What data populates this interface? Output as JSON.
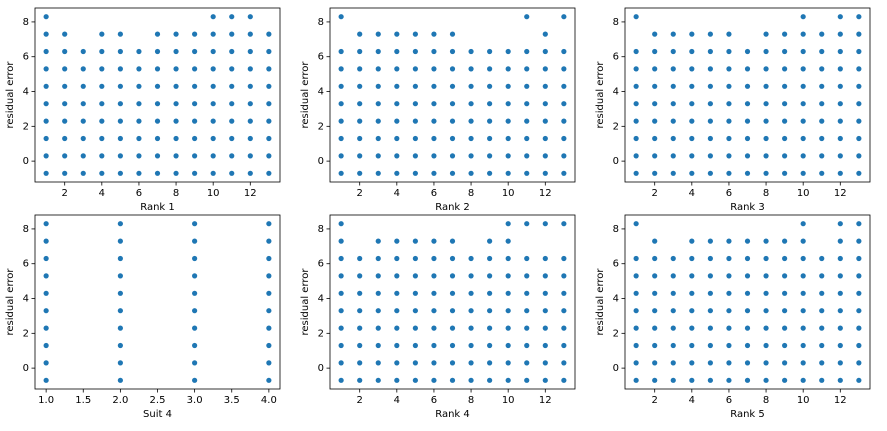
{
  "chart_data": [
    {
      "type": "scatter",
      "xlabel": "Rank 1",
      "ylabel": "residual error",
      "color": "#1f77b4",
      "xlim": [
        0.4,
        13.6
      ],
      "xticks": [
        2,
        4,
        6,
        8,
        10,
        12
      ],
      "ylim": [
        -1.2,
        8.8
      ],
      "yticks": [
        0,
        2,
        4,
        6,
        8
      ],
      "x": [
        1,
        2,
        3,
        4,
        5,
        6,
        7,
        8,
        9,
        10,
        11,
        12,
        13,
        1,
        2,
        3,
        4,
        5,
        6,
        7,
        8,
        9,
        10,
        11,
        12,
        13,
        1,
        2,
        3,
        4,
        5,
        6,
        7,
        8,
        9,
        10,
        11,
        12,
        13,
        1,
        2,
        3,
        4,
        5,
        6,
        7,
        8,
        9,
        10,
        11,
        12,
        13,
        1,
        2,
        3,
        4,
        5,
        6,
        7,
        8,
        9,
        10,
        11,
        12,
        13,
        1,
        2,
        3,
        4,
        5,
        6,
        7,
        8,
        9,
        10,
        11,
        12,
        13,
        1,
        2,
        3,
        4,
        5,
        6,
        7,
        8,
        9,
        10,
        11,
        12,
        13,
        1,
        2,
        3,
        4,
        5,
        6,
        7,
        8,
        9,
        10,
        11,
        12,
        13,
        1,
        2,
        4,
        5,
        7,
        8,
        9,
        10,
        11,
        12,
        13,
        1,
        10,
        11,
        12
      ],
      "y": [
        -0.7,
        -0.7,
        -0.7,
        -0.7,
        -0.7,
        -0.7,
        -0.7,
        -0.7,
        -0.7,
        -0.7,
        -0.7,
        -0.7,
        -0.7,
        0.3,
        0.3,
        0.3,
        0.3,
        0.3,
        0.3,
        0.3,
        0.3,
        0.3,
        0.3,
        0.3,
        0.3,
        0.3,
        1.3,
        1.3,
        1.3,
        1.3,
        1.3,
        1.3,
        1.3,
        1.3,
        1.3,
        1.3,
        1.3,
        1.3,
        1.3,
        2.3,
        2.3,
        2.3,
        2.3,
        2.3,
        2.3,
        2.3,
        2.3,
        2.3,
        2.3,
        2.3,
        2.3,
        2.3,
        3.3,
        3.3,
        3.3,
        3.3,
        3.3,
        3.3,
        3.3,
        3.3,
        3.3,
        3.3,
        3.3,
        3.3,
        3.3,
        4.3,
        4.3,
        4.3,
        4.3,
        4.3,
        4.3,
        4.3,
        4.3,
        4.3,
        4.3,
        4.3,
        4.3,
        4.3,
        5.3,
        5.3,
        5.3,
        5.3,
        5.3,
        5.3,
        5.3,
        5.3,
        5.3,
        5.3,
        5.3,
        5.3,
        5.3,
        6.3,
        6.3,
        6.3,
        6.3,
        6.3,
        6.3,
        6.3,
        6.3,
        6.3,
        6.3,
        6.3,
        6.3,
        6.3,
        7.3,
        7.3,
        7.3,
        7.3,
        7.3,
        7.3,
        7.3,
        7.3,
        7.3,
        7.3,
        7.3,
        8.3,
        8.3,
        8.3,
        8.3
      ]
    },
    {
      "type": "scatter",
      "xlabel": "Rank 2",
      "ylabel": "residual error",
      "color": "#1f77b4",
      "xlim": [
        0.4,
        13.6
      ],
      "xticks": [
        2,
        4,
        6,
        8,
        10,
        12
      ],
      "ylim": [
        -1.2,
        8.8
      ],
      "yticks": [
        0,
        2,
        4,
        6,
        8
      ],
      "x": [
        1,
        2,
        3,
        4,
        5,
        6,
        7,
        8,
        9,
        10,
        11,
        12,
        13,
        1,
        2,
        3,
        4,
        5,
        6,
        7,
        8,
        9,
        10,
        11,
        12,
        13,
        1,
        2,
        3,
        4,
        5,
        6,
        7,
        8,
        9,
        10,
        11,
        12,
        13,
        1,
        2,
        3,
        4,
        5,
        6,
        7,
        8,
        9,
        10,
        11,
        12,
        13,
        1,
        2,
        3,
        4,
        5,
        6,
        7,
        8,
        9,
        10,
        11,
        12,
        13,
        1,
        2,
        3,
        4,
        5,
        6,
        7,
        8,
        9,
        10,
        11,
        12,
        13,
        1,
        2,
        3,
        4,
        5,
        6,
        7,
        8,
        9,
        10,
        11,
        12,
        13,
        1,
        2,
        3,
        4,
        5,
        6,
        7,
        8,
        9,
        10,
        11,
        12,
        13,
        2,
        3,
        4,
        5,
        6,
        7,
        12,
        1,
        11,
        13
      ],
      "y": [
        -0.7,
        -0.7,
        -0.7,
        -0.7,
        -0.7,
        -0.7,
        -0.7,
        -0.7,
        -0.7,
        -0.7,
        -0.7,
        -0.7,
        -0.7,
        0.3,
        0.3,
        0.3,
        0.3,
        0.3,
        0.3,
        0.3,
        0.3,
        0.3,
        0.3,
        0.3,
        0.3,
        0.3,
        1.3,
        1.3,
        1.3,
        1.3,
        1.3,
        1.3,
        1.3,
        1.3,
        1.3,
        1.3,
        1.3,
        1.3,
        1.3,
        2.3,
        2.3,
        2.3,
        2.3,
        2.3,
        2.3,
        2.3,
        2.3,
        2.3,
        2.3,
        2.3,
        2.3,
        2.3,
        3.3,
        3.3,
        3.3,
        3.3,
        3.3,
        3.3,
        3.3,
        3.3,
        3.3,
        3.3,
        3.3,
        3.3,
        3.3,
        4.3,
        4.3,
        4.3,
        4.3,
        4.3,
        4.3,
        4.3,
        4.3,
        4.3,
        4.3,
        4.3,
        4.3,
        4.3,
        5.3,
        5.3,
        5.3,
        5.3,
        5.3,
        5.3,
        5.3,
        5.3,
        5.3,
        5.3,
        5.3,
        5.3,
        5.3,
        6.3,
        6.3,
        6.3,
        6.3,
        6.3,
        6.3,
        6.3,
        6.3,
        6.3,
        6.3,
        6.3,
        6.3,
        6.3,
        7.3,
        7.3,
        7.3,
        7.3,
        7.3,
        7.3,
        7.3,
        8.3,
        8.3,
        8.3
      ]
    },
    {
      "type": "scatter",
      "xlabel": "Rank 3",
      "ylabel": "residual error",
      "color": "#1f77b4",
      "xlim": [
        0.4,
        13.6
      ],
      "xticks": [
        2,
        4,
        6,
        8,
        10,
        12
      ],
      "ylim": [
        -1.2,
        8.8
      ],
      "yticks": [
        0,
        2,
        4,
        6,
        8
      ],
      "x": [
        1,
        2,
        3,
        4,
        5,
        6,
        7,
        8,
        9,
        10,
        11,
        12,
        13,
        1,
        2,
        3,
        4,
        5,
        6,
        7,
        8,
        9,
        10,
        11,
        12,
        13,
        1,
        2,
        3,
        4,
        5,
        6,
        7,
        8,
        9,
        10,
        11,
        12,
        13,
        1,
        2,
        3,
        4,
        5,
        6,
        7,
        8,
        9,
        10,
        11,
        12,
        13,
        1,
        2,
        3,
        4,
        5,
        6,
        7,
        8,
        9,
        10,
        11,
        12,
        13,
        1,
        2,
        3,
        4,
        5,
        6,
        7,
        8,
        9,
        10,
        11,
        12,
        13,
        1,
        2,
        3,
        4,
        5,
        6,
        7,
        8,
        9,
        10,
        11,
        12,
        13,
        1,
        2,
        3,
        4,
        5,
        6,
        7,
        8,
        9,
        10,
        11,
        12,
        13,
        2,
        3,
        4,
        5,
        6,
        8,
        9,
        10,
        11,
        12,
        13,
        1,
        10,
        12,
        13
      ],
      "y": [
        -0.7,
        -0.7,
        -0.7,
        -0.7,
        -0.7,
        -0.7,
        -0.7,
        -0.7,
        -0.7,
        -0.7,
        -0.7,
        -0.7,
        -0.7,
        0.3,
        0.3,
        0.3,
        0.3,
        0.3,
        0.3,
        0.3,
        0.3,
        0.3,
        0.3,
        0.3,
        0.3,
        0.3,
        1.3,
        1.3,
        1.3,
        1.3,
        1.3,
        1.3,
        1.3,
        1.3,
        1.3,
        1.3,
        1.3,
        1.3,
        1.3,
        2.3,
        2.3,
        2.3,
        2.3,
        2.3,
        2.3,
        2.3,
        2.3,
        2.3,
        2.3,
        2.3,
        2.3,
        2.3,
        3.3,
        3.3,
        3.3,
        3.3,
        3.3,
        3.3,
        3.3,
        3.3,
        3.3,
        3.3,
        3.3,
        3.3,
        3.3,
        4.3,
        4.3,
        4.3,
        4.3,
        4.3,
        4.3,
        4.3,
        4.3,
        4.3,
        4.3,
        4.3,
        4.3,
        4.3,
        5.3,
        5.3,
        5.3,
        5.3,
        5.3,
        5.3,
        5.3,
        5.3,
        5.3,
        5.3,
        5.3,
        5.3,
        5.3,
        6.3,
        6.3,
        6.3,
        6.3,
        6.3,
        6.3,
        6.3,
        6.3,
        6.3,
        6.3,
        6.3,
        6.3,
        6.3,
        7.3,
        7.3,
        7.3,
        7.3,
        7.3,
        7.3,
        7.3,
        7.3,
        7.3,
        7.3,
        7.3,
        8.3,
        8.3,
        8.3,
        8.3
      ]
    },
    {
      "type": "scatter",
      "xlabel": "Suit 4",
      "ylabel": "residual error",
      "color": "#1f77b4",
      "xlim": [
        0.85,
        4.15
      ],
      "xticks": [
        {
          "value": 1,
          "label": "1.0"
        },
        {
          "value": 1.5,
          "label": "1.5"
        },
        {
          "value": 2,
          "label": "2.0"
        },
        {
          "value": 2.5,
          "label": "2.5"
        },
        {
          "value": 3,
          "label": "3.0"
        },
        {
          "value": 3.5,
          "label": "3.5"
        },
        {
          "value": 4,
          "label": "4.0"
        }
      ],
      "ylim": [
        -1.2,
        8.8
      ],
      "yticks": [
        0,
        2,
        4,
        6,
        8
      ],
      "x": [
        1,
        2,
        3,
        4,
        1,
        2,
        3,
        4,
        1,
        2,
        3,
        4,
        1,
        2,
        3,
        4,
        1,
        2,
        3,
        4,
        1,
        2,
        3,
        4,
        1,
        2,
        3,
        4,
        1,
        2,
        3,
        4,
        1,
        2,
        3,
        4,
        1,
        2,
        3,
        4
      ],
      "y": [
        -0.7,
        -0.7,
        -0.7,
        -0.7,
        0.3,
        0.3,
        0.3,
        0.3,
        1.3,
        1.3,
        1.3,
        1.3,
        2.3,
        2.3,
        2.3,
        2.3,
        3.3,
        3.3,
        3.3,
        3.3,
        4.3,
        4.3,
        4.3,
        4.3,
        5.3,
        5.3,
        5.3,
        5.3,
        6.3,
        6.3,
        6.3,
        6.3,
        7.3,
        7.3,
        7.3,
        7.3,
        8.3,
        8.3,
        8.3,
        8.3
      ]
    },
    {
      "type": "scatter",
      "xlabel": "Rank 4",
      "ylabel": "residual error",
      "color": "#1f77b4",
      "xlim": [
        0.4,
        13.6
      ],
      "xticks": [
        2,
        4,
        6,
        8,
        10,
        12
      ],
      "ylim": [
        -1.2,
        8.8
      ],
      "yticks": [
        0,
        2,
        4,
        6,
        8
      ],
      "x": [
        1,
        2,
        3,
        4,
        5,
        6,
        7,
        8,
        9,
        10,
        11,
        12,
        13,
        1,
        2,
        3,
        4,
        5,
        6,
        7,
        8,
        9,
        10,
        11,
        12,
        13,
        1,
        2,
        3,
        4,
        5,
        6,
        7,
        8,
        9,
        10,
        11,
        12,
        13,
        1,
        2,
        3,
        4,
        5,
        6,
        7,
        8,
        9,
        10,
        11,
        12,
        13,
        1,
        2,
        3,
        4,
        5,
        6,
        7,
        8,
        9,
        10,
        11,
        12,
        13,
        1,
        2,
        3,
        4,
        5,
        6,
        7,
        8,
        9,
        10,
        11,
        12,
        13,
        1,
        2,
        3,
        4,
        5,
        6,
        7,
        8,
        9,
        10,
        11,
        12,
        13,
        1,
        2,
        3,
        4,
        5,
        6,
        7,
        8,
        9,
        10,
        11,
        12,
        13,
        1,
        3,
        4,
        5,
        6,
        7,
        9,
        10,
        1,
        10,
        11,
        12,
        13
      ],
      "y": [
        -0.7,
        -0.7,
        -0.7,
        -0.7,
        -0.7,
        -0.7,
        -0.7,
        -0.7,
        -0.7,
        -0.7,
        -0.7,
        -0.7,
        -0.7,
        0.3,
        0.3,
        0.3,
        0.3,
        0.3,
        0.3,
        0.3,
        0.3,
        0.3,
        0.3,
        0.3,
        0.3,
        0.3,
        1.3,
        1.3,
        1.3,
        1.3,
        1.3,
        1.3,
        1.3,
        1.3,
        1.3,
        1.3,
        1.3,
        1.3,
        1.3,
        2.3,
        2.3,
        2.3,
        2.3,
        2.3,
        2.3,
        2.3,
        2.3,
        2.3,
        2.3,
        2.3,
        2.3,
        2.3,
        3.3,
        3.3,
        3.3,
        3.3,
        3.3,
        3.3,
        3.3,
        3.3,
        3.3,
        3.3,
        3.3,
        3.3,
        3.3,
        4.3,
        4.3,
        4.3,
        4.3,
        4.3,
        4.3,
        4.3,
        4.3,
        4.3,
        4.3,
        4.3,
        4.3,
        4.3,
        5.3,
        5.3,
        5.3,
        5.3,
        5.3,
        5.3,
        5.3,
        5.3,
        5.3,
        5.3,
        5.3,
        5.3,
        5.3,
        6.3,
        6.3,
        6.3,
        6.3,
        6.3,
        6.3,
        6.3,
        6.3,
        6.3,
        6.3,
        6.3,
        6.3,
        6.3,
        7.3,
        7.3,
        7.3,
        7.3,
        7.3,
        7.3,
        7.3,
        7.3,
        8.3,
        8.3,
        8.3,
        8.3,
        8.3
      ]
    },
    {
      "type": "scatter",
      "xlabel": "Rank 5",
      "ylabel": "residual error",
      "color": "#1f77b4",
      "xlim": [
        0.4,
        13.6
      ],
      "xticks": [
        2,
        4,
        6,
        8,
        10,
        12
      ],
      "ylim": [
        -1.2,
        8.8
      ],
      "yticks": [
        0,
        2,
        4,
        6,
        8
      ],
      "x": [
        1,
        2,
        3,
        4,
        5,
        6,
        7,
        8,
        9,
        10,
        11,
        12,
        13,
        1,
        2,
        3,
        4,
        5,
        6,
        7,
        8,
        9,
        10,
        11,
        12,
        13,
        1,
        2,
        3,
        4,
        5,
        6,
        7,
        8,
        9,
        10,
        11,
        12,
        13,
        1,
        2,
        3,
        4,
        5,
        6,
        7,
        8,
        9,
        10,
        11,
        12,
        13,
        1,
        2,
        3,
        4,
        5,
        6,
        7,
        8,
        9,
        10,
        11,
        12,
        13,
        1,
        2,
        3,
        4,
        5,
        6,
        7,
        8,
        9,
        10,
        11,
        12,
        13,
        1,
        2,
        3,
        4,
        5,
        6,
        7,
        8,
        9,
        10,
        11,
        12,
        13,
        1,
        2,
        3,
        4,
        5,
        6,
        7,
        8,
        9,
        10,
        11,
        12,
        13,
        2,
        4,
        5,
        6,
        7,
        8,
        9,
        10,
        12,
        13,
        1,
        10,
        12,
        13
      ],
      "y": [
        -0.7,
        -0.7,
        -0.7,
        -0.7,
        -0.7,
        -0.7,
        -0.7,
        -0.7,
        -0.7,
        -0.7,
        -0.7,
        -0.7,
        -0.7,
        0.3,
        0.3,
        0.3,
        0.3,
        0.3,
        0.3,
        0.3,
        0.3,
        0.3,
        0.3,
        0.3,
        0.3,
        0.3,
        1.3,
        1.3,
        1.3,
        1.3,
        1.3,
        1.3,
        1.3,
        1.3,
        1.3,
        1.3,
        1.3,
        1.3,
        1.3,
        2.3,
        2.3,
        2.3,
        2.3,
        2.3,
        2.3,
        2.3,
        2.3,
        2.3,
        2.3,
        2.3,
        2.3,
        2.3,
        3.3,
        3.3,
        3.3,
        3.3,
        3.3,
        3.3,
        3.3,
        3.3,
        3.3,
        3.3,
        3.3,
        3.3,
        3.3,
        4.3,
        4.3,
        4.3,
        4.3,
        4.3,
        4.3,
        4.3,
        4.3,
        4.3,
        4.3,
        4.3,
        4.3,
        4.3,
        5.3,
        5.3,
        5.3,
        5.3,
        5.3,
        5.3,
        5.3,
        5.3,
        5.3,
        5.3,
        5.3,
        5.3,
        5.3,
        6.3,
        6.3,
        6.3,
        6.3,
        6.3,
        6.3,
        6.3,
        6.3,
        6.3,
        6.3,
        6.3,
        6.3,
        6.3,
        7.3,
        7.3,
        7.3,
        7.3,
        7.3,
        7.3,
        7.3,
        7.3,
        7.3,
        7.3,
        8.3,
        8.3,
        8.3,
        8.3
      ]
    }
  ]
}
